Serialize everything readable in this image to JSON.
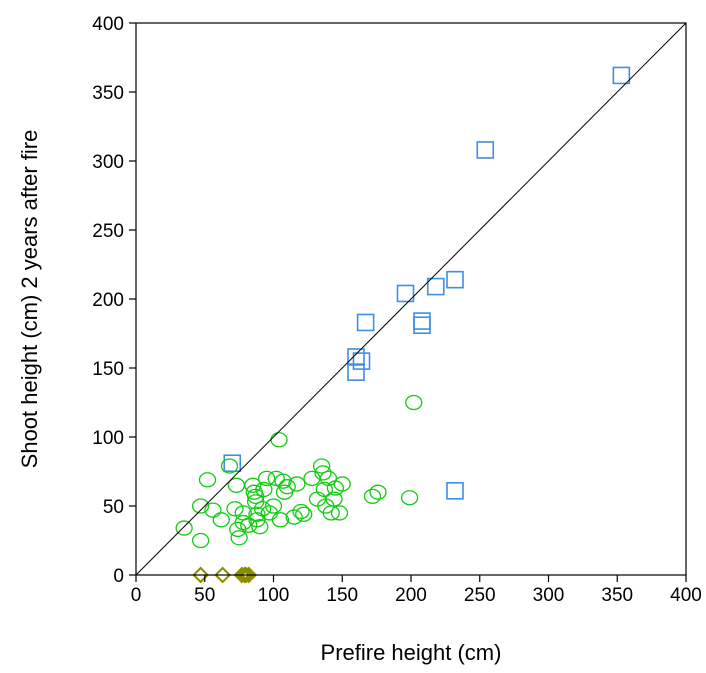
{
  "chart_data": {
    "type": "scatter",
    "xlabel": "Prefire height (cm)",
    "ylabel": "Shoot height (cm) 2 years after fire",
    "xlim": [
      0,
      400
    ],
    "ylim": [
      0,
      400
    ],
    "xticks": [
      0,
      50,
      100,
      150,
      200,
      250,
      300,
      350,
      400
    ],
    "yticks": [
      0,
      50,
      100,
      150,
      200,
      250,
      300,
      350,
      400
    ],
    "xtick_labels": [
      "0",
      "50",
      "100",
      "150",
      "200",
      "250",
      "300",
      "350",
      "400"
    ],
    "ytick_labels": [
      "0",
      "50",
      "100",
      "150",
      "200",
      "250",
      "300",
      "350",
      "400"
    ],
    "grid": false,
    "reference_line": {
      "from": [
        0,
        0
      ],
      "to": [
        400,
        400
      ],
      "color": "#000000"
    },
    "series": [
      {
        "marker": "square",
        "color": "#3d8ee6",
        "points": [
          [
            70,
            81
          ],
          [
            353,
            362
          ],
          [
            254,
            308
          ],
          [
            232,
            214
          ],
          [
            218,
            209
          ],
          [
            196,
            204
          ],
          [
            167,
            183
          ],
          [
            208,
            184
          ],
          [
            208,
            181
          ],
          [
            160,
            158
          ],
          [
            164,
            155
          ],
          [
            160,
            147
          ],
          [
            232,
            61
          ]
        ]
      },
      {
        "marker": "circle",
        "color": "#11cc11",
        "points": [
          [
            35,
            34
          ],
          [
            47,
            25
          ],
          [
            47,
            50
          ],
          [
            52,
            69
          ],
          [
            56,
            47
          ],
          [
            62,
            40
          ],
          [
            68,
            79
          ],
          [
            72,
            48
          ],
          [
            73,
            65
          ],
          [
            74,
            33
          ],
          [
            75,
            27
          ],
          [
            78,
            38
          ],
          [
            78,
            45
          ],
          [
            82,
            36
          ],
          [
            85,
            65
          ],
          [
            86,
            60
          ],
          [
            87,
            53
          ],
          [
            87,
            57
          ],
          [
            88,
            44
          ],
          [
            88,
            40
          ],
          [
            90,
            35
          ],
          [
            92,
            48
          ],
          [
            93,
            62
          ],
          [
            95,
            70
          ],
          [
            97,
            45
          ],
          [
            100,
            50
          ],
          [
            102,
            70
          ],
          [
            104,
            98
          ],
          [
            105,
            40
          ],
          [
            107,
            68
          ],
          [
            108,
            60
          ],
          [
            110,
            64
          ],
          [
            115,
            42
          ],
          [
            117,
            66
          ],
          [
            120,
            46
          ],
          [
            122,
            44
          ],
          [
            128,
            70
          ],
          [
            132,
            55
          ],
          [
            135,
            79
          ],
          [
            136,
            74
          ],
          [
            137,
            62
          ],
          [
            138,
            50
          ],
          [
            140,
            70
          ],
          [
            142,
            45
          ],
          [
            144,
            55
          ],
          [
            145,
            63
          ],
          [
            148,
            45
          ],
          [
            150,
            66
          ],
          [
            172,
            57
          ],
          [
            176,
            60
          ],
          [
            199,
            56
          ],
          [
            202,
            125
          ]
        ]
      },
      {
        "marker": "diamond",
        "color": "#8c8c00",
        "points": [
          [
            47,
            0
          ],
          [
            63,
            0
          ],
          [
            77,
            0
          ],
          [
            79,
            0
          ],
          [
            80,
            0
          ],
          [
            82,
            0
          ]
        ]
      }
    ]
  }
}
